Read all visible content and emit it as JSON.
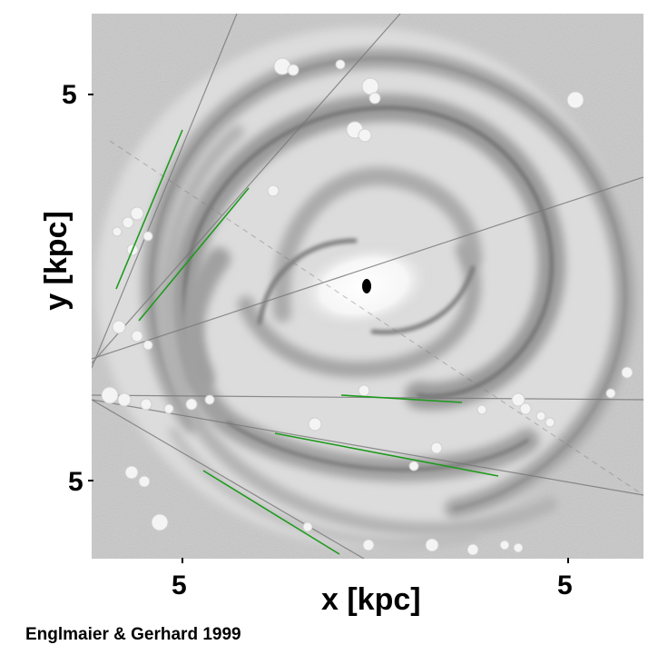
{
  "figure": {
    "y_tick_top": "5",
    "y_tick_bottom": "5",
    "x_tick_left": "5",
    "x_tick_right": "5",
    "y_axis_title": "y [kpc]",
    "x_axis_title": "x [kpc]",
    "credit": "Englmaier & Gerhard 1999"
  },
  "colors": {
    "background_gray": "#d2d2d2",
    "arm_gray": "#8a8a8a",
    "green_line": "#1e9a1e",
    "center": "#000000"
  }
}
